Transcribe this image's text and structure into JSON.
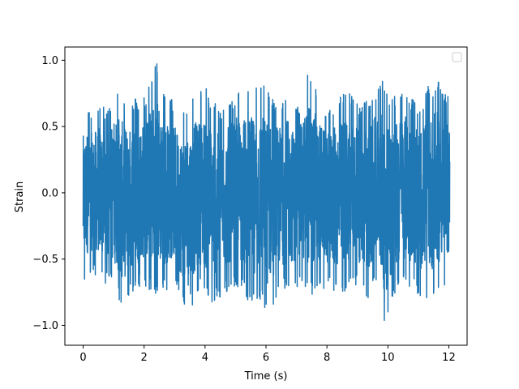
{
  "chart_data": {
    "type": "line",
    "title": "",
    "xlabel": "Time (s)",
    "ylabel": "Strain",
    "xlim": [
      -0.6,
      12.6
    ],
    "ylim": [
      -1.15,
      1.1
    ],
    "xticks": [
      0,
      2,
      4,
      6,
      8,
      10,
      12
    ],
    "xtick_labels": [
      "0",
      "2",
      "4",
      "6",
      "8",
      "10",
      "12"
    ],
    "yticks": [
      -1.0,
      -0.5,
      0.0,
      0.5,
      1.0
    ],
    "ytick_labels": [
      "−1.0",
      "−0.5",
      "0.0",
      "0.5",
      "1.0"
    ],
    "grid": false,
    "legend": {
      "placement": "upper-right",
      "entries": []
    },
    "series": [
      {
        "color": "#1f77b4",
        "x_range": [
          0,
          12.03
        ],
        "envelope_upper": [
          [
            0.0,
            0.62
          ],
          [
            0.1,
            0.66
          ],
          [
            0.3,
            0.62
          ],
          [
            0.5,
            0.68
          ],
          [
            0.8,
            0.62
          ],
          [
            1.1,
            0.83
          ],
          [
            1.5,
            0.7
          ],
          [
            2.0,
            0.74
          ],
          [
            2.2,
            0.85
          ],
          [
            2.4,
            1.0
          ],
          [
            2.7,
            0.75
          ],
          [
            3.2,
            0.65
          ],
          [
            3.5,
            0.72
          ],
          [
            4.0,
            0.8
          ],
          [
            4.5,
            0.63
          ],
          [
            5.0,
            0.77
          ],
          [
            5.5,
            0.8
          ],
          [
            6.0,
            0.82
          ],
          [
            6.3,
            0.7
          ],
          [
            6.7,
            0.76
          ],
          [
            7.0,
            0.63
          ],
          [
            7.4,
            0.92
          ],
          [
            7.7,
            0.79
          ],
          [
            8.0,
            0.62
          ],
          [
            8.6,
            0.81
          ],
          [
            9.0,
            0.68
          ],
          [
            9.5,
            0.76
          ],
          [
            9.8,
            0.86
          ],
          [
            10.2,
            0.73
          ],
          [
            10.5,
            0.82
          ],
          [
            11.0,
            0.66
          ],
          [
            11.3,
            0.8
          ],
          [
            11.7,
            0.84
          ],
          [
            12.0,
            0.72
          ]
        ],
        "envelope_lower": [
          [
            0.0,
            -0.74
          ],
          [
            0.2,
            -0.6
          ],
          [
            0.6,
            -0.66
          ],
          [
            1.0,
            -0.73
          ],
          [
            1.3,
            -0.9
          ],
          [
            1.6,
            -0.77
          ],
          [
            2.0,
            -0.7
          ],
          [
            2.4,
            -0.82
          ],
          [
            3.0,
            -0.68
          ],
          [
            3.4,
            -0.96
          ],
          [
            3.8,
            -0.75
          ],
          [
            4.2,
            -0.86
          ],
          [
            4.6,
            -0.78
          ],
          [
            5.0,
            -0.7
          ],
          [
            5.5,
            -0.85
          ],
          [
            5.9,
            -0.81
          ],
          [
            6.0,
            -0.97
          ],
          [
            6.4,
            -0.77
          ],
          [
            7.0,
            -0.71
          ],
          [
            7.5,
            -0.78
          ],
          [
            8.0,
            -0.71
          ],
          [
            8.4,
            -0.79
          ],
          [
            8.8,
            -0.69
          ],
          [
            9.3,
            -0.81
          ],
          [
            9.7,
            -0.69
          ],
          [
            9.9,
            -1.05
          ],
          [
            10.2,
            -0.79
          ],
          [
            10.6,
            -0.7
          ],
          [
            11.0,
            -0.77
          ],
          [
            11.4,
            -0.82
          ],
          [
            12.0,
            -0.66
          ]
        ]
      }
    ]
  }
}
